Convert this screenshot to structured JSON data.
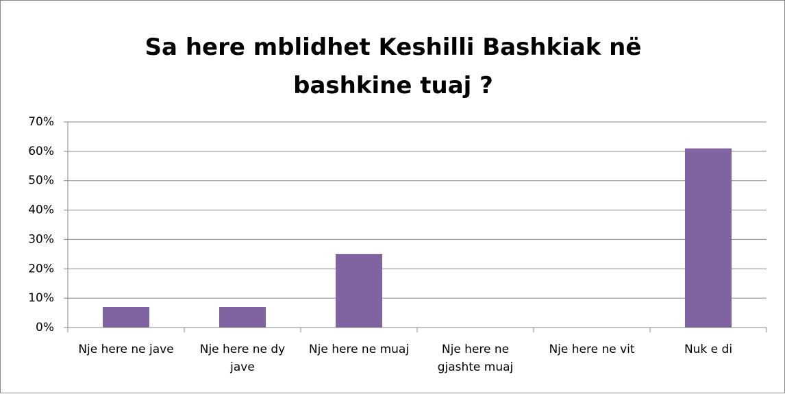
{
  "chart_data": {
    "type": "bar",
    "title": "Sa here mblidhet Keshilli Bashkiak në bashkine tuaj ?",
    "categories": [
      "Nje here ne jave",
      "Nje here ne dy jave",
      "Nje here ne muaj",
      "Nje here ne gjashte muaj",
      "Nje here ne vit",
      "Nuk e di"
    ],
    "values": [
      7,
      7,
      25,
      0,
      0,
      61
    ],
    "color": "#8064a2",
    "ylim": [
      0,
      70
    ],
    "yticks": [
      {
        "value": 0,
        "label": "0%"
      },
      {
        "value": 10,
        "label": "10%"
      },
      {
        "value": 20,
        "label": "20%"
      },
      {
        "value": 30,
        "label": "30%"
      },
      {
        "value": 40,
        "label": "40%"
      },
      {
        "value": 50,
        "label": "50%"
      },
      {
        "value": 60,
        "label": "60%"
      },
      {
        "value": 70,
        "label": "70%"
      }
    ],
    "grid": true
  }
}
